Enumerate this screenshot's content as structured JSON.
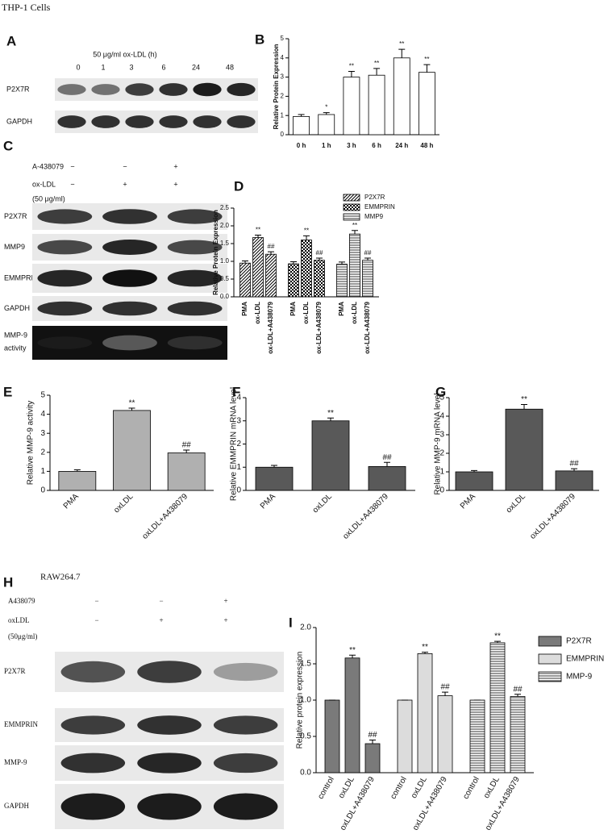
{
  "header": "THP-1 Cells",
  "panel_letters": [
    "A",
    "B",
    "C",
    "D",
    "E",
    "F",
    "G",
    "H",
    "I"
  ],
  "blot_A": {
    "title": "50 μg/ml ox-LDL (h)",
    "lanes": [
      "0",
      "1",
      "3",
      "6",
      "24",
      "48"
    ],
    "rows": [
      "P2X7R",
      "GAPDH"
    ]
  },
  "blot_C": {
    "treatments": [
      {
        "name": "A-438079",
        "signs": [
          "−",
          "−",
          "+"
        ]
      },
      {
        "name": "ox-LDL",
        "signs": [
          "−",
          "+",
          "+"
        ]
      }
    ],
    "dose": "(50 μg/ml)",
    "rows": [
      "P2X7R",
      "MMP9",
      "EMMPRIN",
      "GAPDH"
    ],
    "activity": [
      "MMP-9",
      "activity"
    ]
  },
  "blot_H": {
    "cell_line": "RAW264.7",
    "treatments": [
      {
        "name": "A438079",
        "signs": [
          "−",
          "−",
          "+"
        ]
      },
      {
        "name": "oxLDL",
        "signs": [
          "−",
          "+",
          "+"
        ]
      }
    ],
    "dose": "(50μg/ml)",
    "rows": [
      "P2X7R",
      "EMMPRIN",
      "MMP-9",
      "GAPDH"
    ]
  },
  "chart_data": [
    {
      "type": "bar",
      "ylabel": "Relative Protein Expression",
      "categories": [
        "0 h",
        "1 h",
        "3 h",
        "6 h",
        "24 h",
        "48 h"
      ],
      "values": [
        0.95,
        1.05,
        3.0,
        3.1,
        4.0,
        3.25
      ],
      "errors": [
        0.1,
        0.1,
        0.3,
        0.35,
        0.45,
        0.4
      ],
      "annotations": [
        null,
        "*",
        "**",
        "**",
        "**",
        "**"
      ],
      "color": "#ffffff",
      "ylim": [
        0,
        5
      ],
      "yticks": [
        0,
        1,
        2,
        3,
        4,
        5
      ]
    },
    {
      "type": "bar",
      "ylabel": "Relative Protein Expression",
      "categories": [
        "PMA",
        "ox-LDL",
        "ox-LDL+A438079"
      ],
      "series": [
        {
          "name": "P2X7R",
          "pattern": "diagonal",
          "values": [
            0.95,
            1.67,
            1.2
          ],
          "errors": [
            0.06,
            0.07,
            0.07
          ],
          "annotations": [
            null,
            "**",
            "##"
          ]
        },
        {
          "name": "EMMPRIN",
          "pattern": "checker",
          "values": [
            0.93,
            1.6,
            1.03
          ],
          "errors": [
            0.06,
            0.12,
            0.06
          ],
          "annotations": [
            null,
            "**",
            "##"
          ]
        },
        {
          "name": "MMP9",
          "pattern": "horizontal",
          "values": [
            0.92,
            1.77,
            1.03
          ],
          "errors": [
            0.06,
            0.1,
            0.06
          ],
          "annotations": [
            null,
            "**",
            "##"
          ]
        }
      ],
      "ylim": [
        0,
        2.5
      ],
      "yticks": [
        {
          "value": 0,
          "label": "0.0"
        },
        0.5,
        {
          "value": 1,
          "label": "1.0"
        },
        1.5,
        {
          "value": 2,
          "label": "2.0"
        },
        2.5
      ]
    },
    {
      "type": "bar",
      "ylabel": "Relative MMP-9 activity",
      "categories": [
        "PMA",
        "oxLDL",
        "oxLDL+A438079"
      ],
      "values": [
        1.0,
        4.2,
        1.97
      ],
      "errors": [
        0.08,
        0.12,
        0.15
      ],
      "annotations": [
        null,
        "**",
        "##"
      ],
      "color": "#b0b0b0",
      "ylim": [
        0,
        5
      ],
      "yticks": [
        0,
        1,
        2,
        3,
        4,
        5
      ]
    },
    {
      "type": "bar",
      "ylabel": "Relative  EMMPRIN mRNA level",
      "categories": [
        "PMA",
        "oxLDL",
        "oxLDL+A438079"
      ],
      "values": [
        1.0,
        3.0,
        1.03
      ],
      "errors": [
        0.08,
        0.12,
        0.18
      ],
      "annotations": [
        null,
        "**",
        "##"
      ],
      "color": "#595959",
      "ylim": [
        0,
        4
      ],
      "yticks": [
        0,
        1,
        2,
        3,
        4
      ]
    },
    {
      "type": "bar",
      "ylabel": "Relative  MMP-9 mRNA level",
      "categories": [
        "PMA",
        "oxLDL",
        "oxLDL+A438079"
      ],
      "values": [
        1.0,
        4.38,
        1.05
      ],
      "errors": [
        0.07,
        0.25,
        0.12
      ],
      "annotations": [
        null,
        "**",
        "##"
      ],
      "color": "#595959",
      "ylim": [
        0,
        5
      ],
      "yticks": [
        0,
        1,
        2,
        3,
        4,
        5
      ]
    },
    {
      "type": "bar",
      "ylabel": "Relative protein expression",
      "categories": [
        "control",
        "oxLDL",
        "oxLDL+A438079"
      ],
      "series": [
        {
          "name": "P2X7R",
          "color": "#7a7a7a",
          "values": [
            1.0,
            1.58,
            0.4
          ],
          "errors": [
            0,
            0.04,
            0.05
          ],
          "annotations": [
            null,
            "**",
            "##"
          ]
        },
        {
          "name": "EMMPRIN",
          "color": "#dcdcdc",
          "values": [
            1.0,
            1.64,
            1.06
          ],
          "errors": [
            0,
            0.02,
            0.05
          ],
          "annotations": [
            null,
            "**",
            "##"
          ]
        },
        {
          "name": "MMP-9",
          "color": "#ffffff",
          "pattern": "horizontal",
          "values": [
            1.0,
            1.79,
            1.05
          ],
          "errors": [
            0,
            0.02,
            0.03
          ],
          "annotations": [
            null,
            "**",
            "##"
          ]
        }
      ],
      "ylim": [
        0,
        2
      ],
      "yticks": [
        {
          "value": 0,
          "label": "0.0"
        },
        0.5,
        {
          "value": 1,
          "label": "1.0"
        },
        1.5,
        {
          "value": 2,
          "label": "2.0"
        }
      ]
    }
  ]
}
